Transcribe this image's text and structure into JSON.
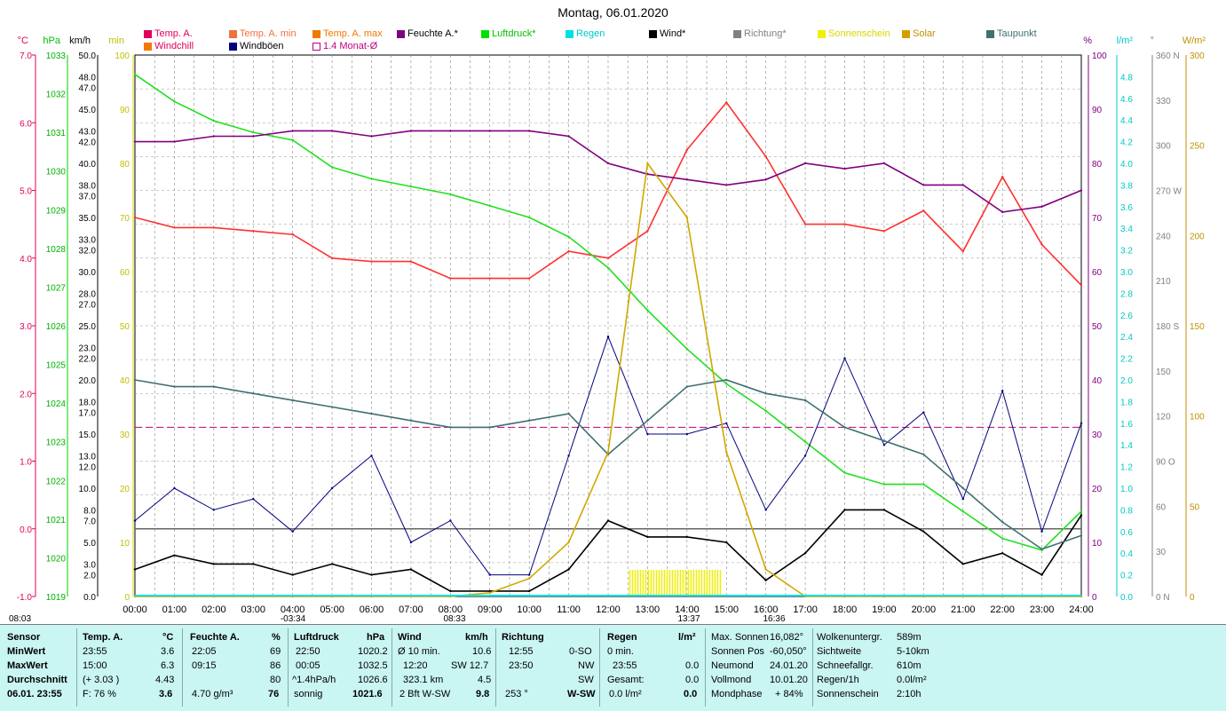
{
  "title": "Montag, 06.01.2020",
  "legend": [
    {
      "label": "Temp. A.",
      "color": "#e0005a"
    },
    {
      "label": "Temp. A. min",
      "color": "#f07040"
    },
    {
      "label": "Temp. A. max",
      "color": "#f07a00"
    },
    {
      "label": "Feuchte A.*",
      "color": "#800080"
    },
    {
      "label": "Luftdruck*",
      "color": "#00e000"
    },
    {
      "label": "Regen",
      "color": "#00e0e0"
    },
    {
      "label": "Wind*",
      "color": "#000000"
    },
    {
      "label": "Richtung*",
      "color": "#808080"
    },
    {
      "label": "Sonnenschein",
      "color": "#f0f000"
    },
    {
      "label": "Solar",
      "color": "#d0a000"
    },
    {
      "label": "Taupunkt",
      "color": "#407070"
    },
    {
      "label": "Windchill",
      "color": "#f07a00"
    },
    {
      "label": "Windböen",
      "color": "#000080"
    },
    {
      "label": "1.4 Monat-Ø",
      "color": "#c0007a"
    }
  ],
  "axes": {
    "temp_unit": "°C",
    "hpa_unit": "hPa",
    "kmh_unit": "km/h",
    "min_unit": "min",
    "pct_unit": "%",
    "rain_unit": "l/m²",
    "deg_unit": "°",
    "wm_unit": "W/m²",
    "temp_ticks": [
      "7.0",
      "6.0",
      "5.0",
      "4.0",
      "3.0",
      "2.0",
      "1.0",
      "0.0",
      "-1.0"
    ],
    "hpa_ticks": [
      "1033",
      "1032",
      "1031",
      "1030",
      "1029",
      "1028",
      "1027",
      "1026",
      "1025",
      "1024",
      "1023",
      "1022",
      "1021",
      "1020",
      "1019"
    ],
    "kmh_ticks": [
      "50.0",
      "48.0",
      "47.0",
      "45.0",
      "43.0",
      "42.0",
      "40.0",
      "38.0",
      "37.0",
      "35.0",
      "33.0",
      "32.0",
      "30.0",
      "28.0",
      "27.0",
      "25.0",
      "23.0",
      "22.0",
      "20.0",
      "18.0",
      "17.0",
      "15.0",
      "13.0",
      "12.0",
      "10.0",
      "8.0",
      "7.0",
      "5.0",
      "3.0",
      "2.0",
      "0.0"
    ],
    "min_ticks": [
      "100",
      "90",
      "80",
      "70",
      "60",
      "50",
      "40",
      "30",
      "20",
      "10",
      "0"
    ],
    "pct_ticks": [
      "100",
      "90",
      "80",
      "70",
      "60",
      "50",
      "40",
      "30",
      "20",
      "10",
      "0"
    ],
    "rain_ticks": [
      "4.8",
      "4.6",
      "4.4",
      "4.2",
      "4.0",
      "3.8",
      "3.6",
      "3.4",
      "3.2",
      "3.0",
      "2.8",
      "2.6",
      "2.4",
      "2.2",
      "2.0",
      "1.8",
      "1.6",
      "1.4",
      "1.2",
      "1.0",
      "0.8",
      "0.6",
      "0.4",
      "0.2",
      "0.0"
    ],
    "deg_ticks": [
      "360 N",
      "330",
      "300",
      "270 W",
      "240",
      "210",
      "180 S",
      "150",
      "120",
      "90  O",
      "60",
      "30",
      "0   N"
    ],
    "wm_ticks": [
      "300",
      "250",
      "200",
      "150",
      "100",
      "50",
      "0"
    ],
    "x_ticks": [
      "00:00",
      "01:00",
      "02:00",
      "03:00",
      "04:00",
      "05:00",
      "06:00",
      "07:00",
      "08:00",
      "09:00",
      "10:00",
      "11:00",
      "12:00",
      "13:00",
      "14:00",
      "15:00",
      "16:00",
      "17:00",
      "18:00",
      "19:00",
      "20:00",
      "21:00",
      "22:00",
      "23:00",
      "24:00"
    ]
  },
  "markers": [
    "08:03",
    "-03:34",
    "08:33",
    "13:37",
    "16:36"
  ],
  "chart_data": {
    "type": "line",
    "title": "Montag, 06.01.2020",
    "x_hours": [
      0,
      1,
      2,
      3,
      4,
      5,
      6,
      7,
      8,
      9,
      10,
      11,
      12,
      13,
      14,
      15,
      16,
      17,
      18,
      19,
      20,
      21,
      22,
      23,
      24
    ],
    "series": [
      {
        "name": "Temp. A.",
        "unit": "°C",
        "values": [
          4.6,
          4.45,
          4.45,
          4.4,
          4.35,
          4.0,
          3.95,
          3.95,
          3.7,
          3.7,
          3.7,
          4.1,
          4.0,
          4.4,
          5.6,
          6.3,
          5.5,
          4.5,
          4.5,
          4.4,
          4.7,
          4.1,
          5.2,
          4.2,
          3.6
        ]
      },
      {
        "name": "Luftdruck",
        "unit": "hPa",
        "values": [
          1032.5,
          1031.8,
          1031.3,
          1031.0,
          1030.8,
          1030.1,
          1029.8,
          1029.6,
          1029.4,
          1029.1,
          1028.8,
          1028.3,
          1027.5,
          1026.4,
          1025.4,
          1024.5,
          1023.8,
          1023.0,
          1022.2,
          1021.9,
          1021.9,
          1021.2,
          1020.5,
          1020.2,
          1021.2
        ]
      },
      {
        "name": "Feuchte A.",
        "unit": "%",
        "values": [
          84,
          84,
          85,
          85,
          86,
          86,
          85,
          86,
          86,
          86,
          86,
          85,
          80,
          78,
          77,
          76,
          77,
          80,
          79,
          80,
          76,
          76,
          71,
          72,
          75
        ]
      },
      {
        "name": "Wind",
        "unit": "km/h",
        "values": [
          2.5,
          3.8,
          3.0,
          3.0,
          2.0,
          3.0,
          2.0,
          2.5,
          0.5,
          0.5,
          0.5,
          2.5,
          7.0,
          5.5,
          5.5,
          5.0,
          1.5,
          4.0,
          8.0,
          8.0,
          6.0,
          3.0,
          4.0,
          2.0,
          7.5
        ]
      },
      {
        "name": "Windböen",
        "unit": "km/h",
        "values": [
          7,
          10,
          8,
          9,
          6,
          10,
          13,
          5,
          7,
          2,
          2,
          13,
          24,
          15,
          15,
          16,
          8,
          13,
          22,
          14,
          17,
          9,
          19,
          6,
          16
        ]
      },
      {
        "name": "Taupunkt",
        "unit": "°C",
        "values": [
          2.2,
          2.1,
          2.1,
          2.0,
          1.9,
          1.8,
          1.7,
          1.6,
          1.5,
          1.5,
          1.6,
          1.7,
          1.1,
          1.6,
          2.1,
          2.2,
          2.0,
          1.9,
          1.5,
          1.3,
          1.1,
          0.6,
          0.1,
          -0.3,
          -0.1
        ]
      },
      {
        "name": "Solar",
        "unit": "W/m²",
        "values": [
          0,
          0,
          0,
          0,
          0,
          0,
          0,
          0,
          0,
          2,
          10,
          30,
          80,
          240,
          210,
          80,
          15,
          0,
          0,
          0,
          0,
          0,
          0,
          0,
          0
        ]
      }
    ]
  },
  "stats": {
    "headers": {
      "sensor": "Sensor",
      "temp": "Temp. A.",
      "temp_unit": "°C",
      "hum": "Feuchte A.",
      "hum_unit": "%",
      "press": "Luftdruck",
      "press_unit": "hPa",
      "wind": "Wind",
      "wind_unit": "km/h",
      "dir": "Richtung",
      "rain": "Regen",
      "rain_unit": "l/m²"
    },
    "rows": {
      "min": {
        "label": "MinWert",
        "temp_time": "23:55",
        "temp_val": "3.6",
        "hum_time": "22:05",
        "hum_val": "69",
        "press_time": "22:50",
        "press_val": "1020.2",
        "wind_a": "Ø 10 min.",
        "wind_a_val": "10.6",
        "dir_time": "12:55",
        "dir_val": "0-SO",
        "rain_a": "0 min.",
        "rain_a_val": ""
      },
      "max": {
        "label": "MaxWert",
        "temp_time": "15:00",
        "temp_val": "6.3",
        "hum_time": "09:15",
        "hum_val": "86",
        "press_time": "00:05",
        "press_val": "1032.5",
        "wind_a": "12:20",
        "wind_a_val": "SW 12.7",
        "dir_time": "23:50",
        "dir_val": "NW",
        "rain_a": "23:55",
        "rain_a_val": "0.0"
      },
      "avg": {
        "label": "Durchschnitt",
        "temp_time": "(+ 3.03 )",
        "temp_val": "4.43",
        "hum_time": "",
        "hum_val": "80",
        "press_time": "^1.4hPa/h",
        "press_val": "1026.6",
        "wind_a": "323.1 km",
        "wind_a_val": "4.5",
        "dir_time": "",
        "dir_val": "SW",
        "rain_a": "Gesamt:",
        "rain_a_val": "0.0"
      },
      "cur": {
        "label": "06.01. 23:55",
        "temp_time": "F: 76 %",
        "temp_val": "3.6",
        "hum_time": "4.70 g/m³",
        "hum_val": "76",
        "press_time": "sonnig",
        "press_val": "1021.6",
        "wind_a": "2 Bft W-SW",
        "wind_a_val": "9.8",
        "dir_time": "253 °",
        "dir_val": "W-SW",
        "rain_a": "0.0 l/m²",
        "rain_a_val": "0.0"
      }
    },
    "sun": {
      "labels": [
        "Max. Sonnen",
        "Sonnen Pos",
        "Neumond",
        "Vollmond",
        "Mondphase"
      ],
      "values": [
        "16,082°",
        "-60,050°",
        "24.01.20",
        "10.01.20",
        "+ 84%"
      ],
      "labels2": [
        "Wolkenuntergr.",
        "Sichtweite",
        "Schneefallgr.",
        "Regen/1h",
        "Sonnenschein"
      ],
      "values2": [
        "589m",
        "5-10km",
        "610m",
        "0.0l/m²",
        "2:10h"
      ]
    }
  }
}
